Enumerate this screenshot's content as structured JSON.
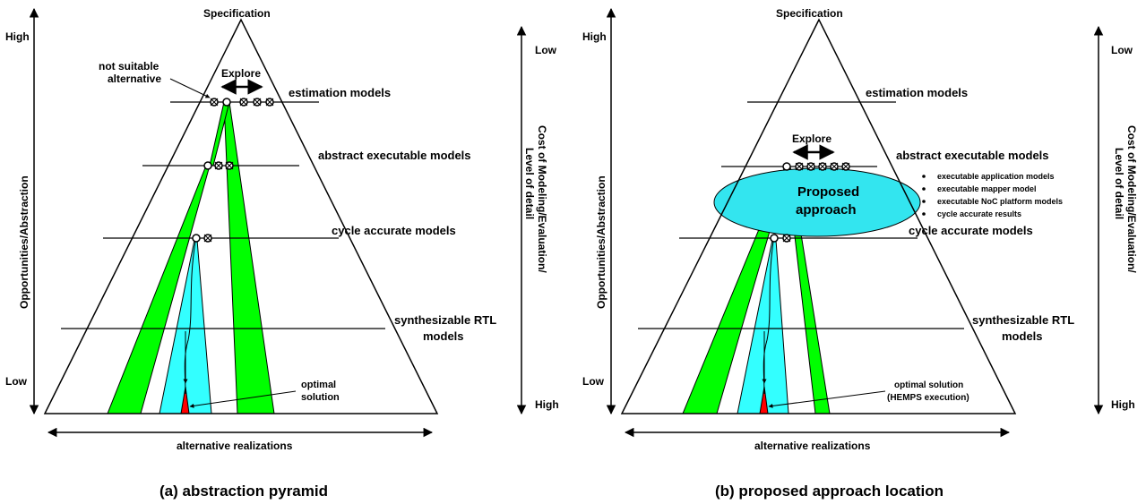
{
  "panel_a": {
    "specification": "Specification",
    "left_high": "High",
    "left_low": "Low",
    "left_axis": "Opportunities/Abstraction",
    "right_low": "Low",
    "right_high": "High",
    "right_axis_line1": "Cost of Modeling/Evaluation/",
    "right_axis_line2": "Level of detail",
    "bottom_axis": "alternative realizations",
    "levels": [
      "estimation models",
      "abstract executable models",
      "cycle accurate models",
      "synthesizable RTL",
      "models"
    ],
    "explore": "Explore",
    "not_suitable_1": "not suitable",
    "not_suitable_2": "alternative",
    "optimal_1": "optimal",
    "optimal_2": "solution",
    "caption": "(a) abstraction pyramid"
  },
  "panel_b": {
    "specification": "Specification",
    "left_high": "High",
    "left_low": "Low",
    "left_axis": "Opportunities/Abstraction",
    "right_low": "Low",
    "right_high": "High",
    "right_axis_line1": "Cost of Modeling/Evaluation/",
    "right_axis_line2": "Level of detail",
    "bottom_axis": "alternative realizations",
    "levels": [
      "estimation models",
      "abstract executable models",
      "cycle accurate models",
      "synthesizable RTL",
      "models"
    ],
    "explore": "Explore",
    "proposed_1": "Proposed",
    "proposed_2": "approach",
    "bullets": [
      "executable application models",
      "executable mapper model",
      "executable NoC platform models",
      "cycle accurate results"
    ],
    "optimal_1": "optimal solution",
    "optimal_2": "(HEMPS execution)",
    "caption": "(b) proposed approach location"
  },
  "colors": {
    "green": "#00ff00",
    "cyan": "#33ffff",
    "red": "#ff0000",
    "ellipse": "#33e5ef"
  }
}
